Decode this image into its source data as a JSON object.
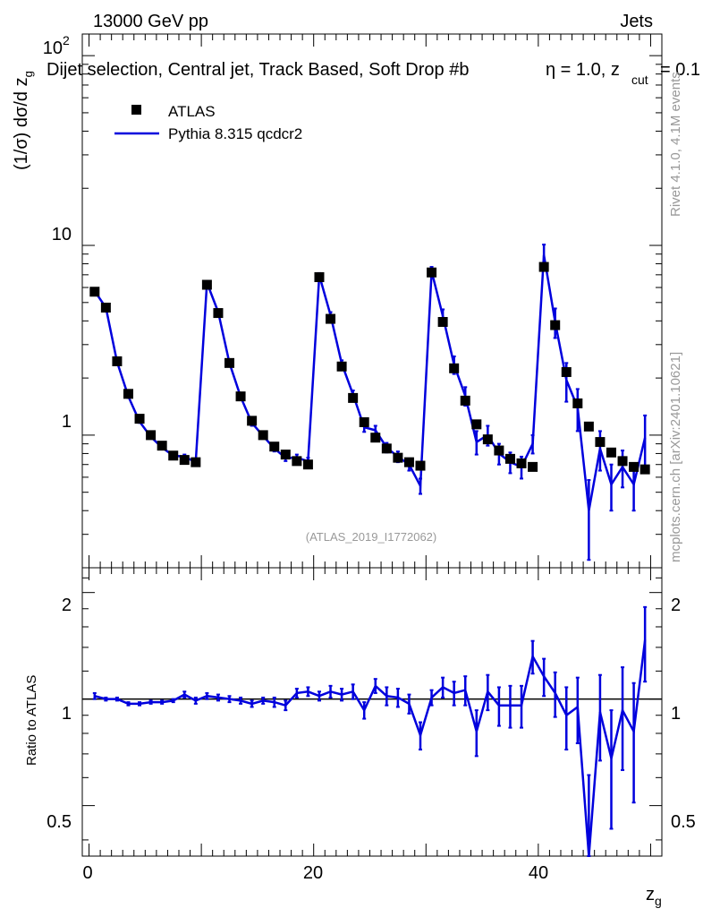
{
  "header": {
    "energy": "13000 GeV pp",
    "process": "Jets",
    "selection": "Dijet selection, Central jet, Track Based, Soft Drop #b",
    "eta_text": "η = 1.0, z",
    "zcut_sub": "cut",
    "zcut_val": "= 0.1",
    "analysis_id": "(ATLAS_2019_I1772062)",
    "side_rivet": "Rivet 4.1.0,  4.1M events",
    "side_mcplots": "mcplots.cern.ch [arXiv:2401.10621]"
  },
  "legend": {
    "data_label": "ATLAS",
    "mc_label": "Pythia 8.315 qcdcr2"
  },
  "colors": {
    "data": "#000000",
    "mc": "#0000dd",
    "ref_line": "#000000",
    "side_text": "#999999"
  },
  "chart_data": [
    {
      "type": "scatter",
      "title": "Dijet selection, Central jet, Track Based, Soft Drop #b η = 1.0, z_cut = 0.1",
      "ylabel_main": "(1/σ) dσ/d z",
      "ylabel_sub": "g",
      "yscale": "log",
      "ylim": [
        0.2,
        130
      ],
      "xlim": [
        -0.6,
        51
      ],
      "ytick_labels": [
        "1",
        "10",
        "10"
      ],
      "ytick_exp": "2",
      "x": [
        0.5,
        1.5,
        2.5,
        3.5,
        4.5,
        5.5,
        6.5,
        7.5,
        8.5,
        9.5,
        10.5,
        11.5,
        12.5,
        13.5,
        14.5,
        15.5,
        16.5,
        17.5,
        18.5,
        19.5,
        20.5,
        21.5,
        22.5,
        23.5,
        24.5,
        25.5,
        26.5,
        27.5,
        28.5,
        29.5,
        30.5,
        31.5,
        32.5,
        33.5,
        34.5,
        35.5,
        36.5,
        37.5,
        38.5,
        39.5,
        40.5,
        41.5,
        42.5,
        43.5,
        44.5,
        45.5,
        46.5,
        47.5,
        48.5,
        49.5
      ],
      "series": [
        {
          "name": "ATLAS",
          "style": "markers",
          "values": [
            5.7,
            4.7,
            2.45,
            1.65,
            1.22,
            1.0,
            0.88,
            0.78,
            0.74,
            0.72,
            6.2,
            4.4,
            2.4,
            1.6,
            1.19,
            1.0,
            0.87,
            0.79,
            0.73,
            0.7,
            6.8,
            4.1,
            2.3,
            1.57,
            1.17,
            0.97,
            0.85,
            0.76,
            0.72,
            0.69,
            7.2,
            3.95,
            2.25,
            1.52,
            1.14,
            0.95,
            0.83,
            0.75,
            0.71,
            0.68,
            7.7,
            3.8,
            2.15,
            1.47,
            1.11,
            0.92,
            0.81,
            0.73,
            0.68,
            0.66
          ]
        },
        {
          "name": "Pythia 8.315 qcdcr2",
          "style": "line",
          "values": [
            5.75,
            4.7,
            2.43,
            1.6,
            1.18,
            0.98,
            0.86,
            0.78,
            0.77,
            0.72,
            6.35,
            4.45,
            2.4,
            1.59,
            1.16,
            0.99,
            0.85,
            0.76,
            0.76,
            0.73,
            6.95,
            4.3,
            2.38,
            1.64,
            1.1,
            1.06,
            0.86,
            0.77,
            0.7,
            0.54,
            7.3,
            4.25,
            2.35,
            1.61,
            0.92,
            1.0,
            0.8,
            0.72,
            0.68,
            0.9,
            8.9,
            3.95,
            1.95,
            1.4,
            0.4,
            0.85,
            0.55,
            0.68,
            0.55,
            0.97
          ],
          "errors": [
            0.08,
            0.07,
            0.04,
            0.03,
            0.02,
            0.02,
            0.02,
            0.02,
            0.02,
            0.02,
            0.15,
            0.12,
            0.07,
            0.05,
            0.04,
            0.03,
            0.03,
            0.03,
            0.03,
            0.03,
            0.2,
            0.15,
            0.1,
            0.08,
            0.06,
            0.06,
            0.05,
            0.05,
            0.05,
            0.05,
            0.4,
            0.35,
            0.25,
            0.18,
            0.13,
            0.12,
            0.1,
            0.09,
            0.09,
            0.1,
            1.2,
            0.7,
            0.45,
            0.35,
            0.18,
            0.2,
            0.15,
            0.15,
            0.15,
            0.3
          ]
        }
      ]
    },
    {
      "type": "line",
      "ylabel": "Ratio to ATLAS",
      "xlabel": "z",
      "xlabel_sub": "g",
      "ylim": [
        0.36,
        2.35
      ],
      "xlim": [
        -0.6,
        51
      ],
      "ytick_labels": [
        "0.5",
        "1",
        "2"
      ],
      "xtick_labels": [
        "0",
        "20",
        "40"
      ],
      "reference": 1.0,
      "x": [
        0.5,
        1.5,
        2.5,
        3.5,
        4.5,
        5.5,
        6.5,
        7.5,
        8.5,
        9.5,
        10.5,
        11.5,
        12.5,
        13.5,
        14.5,
        15.5,
        16.5,
        17.5,
        18.5,
        19.5,
        20.5,
        21.5,
        22.5,
        23.5,
        24.5,
        25.5,
        26.5,
        27.5,
        28.5,
        29.5,
        30.5,
        31.5,
        32.5,
        33.5,
        34.5,
        35.5,
        36.5,
        37.5,
        38.5,
        39.5,
        40.5,
        41.5,
        42.5,
        43.5,
        44.5,
        45.5,
        46.5,
        47.5,
        48.5,
        49.5
      ],
      "series": [
        {
          "name": "Pythia 8.315 qcdcr2",
          "values": [
            1.02,
            1.0,
            1.0,
            0.97,
            0.97,
            0.98,
            0.98,
            0.99,
            1.03,
            0.99,
            1.02,
            1.01,
            1.0,
            0.99,
            0.97,
            0.99,
            0.98,
            0.96,
            1.04,
            1.05,
            1.02,
            1.05,
            1.03,
            1.05,
            0.93,
            1.09,
            1.02,
            1.01,
            0.97,
            0.79,
            1.01,
            1.08,
            1.04,
            1.06,
            0.81,
            1.05,
            0.96,
            0.96,
            0.96,
            1.32,
            1.16,
            1.04,
            0.9,
            0.95,
            0.36,
            0.92,
            0.68,
            0.93,
            0.81,
            1.47
          ],
          "errors": [
            0.02,
            0.01,
            0.01,
            0.01,
            0.01,
            0.01,
            0.01,
            0.01,
            0.02,
            0.02,
            0.02,
            0.02,
            0.02,
            0.02,
            0.02,
            0.02,
            0.03,
            0.03,
            0.03,
            0.03,
            0.03,
            0.04,
            0.04,
            0.05,
            0.05,
            0.05,
            0.06,
            0.06,
            0.06,
            0.07,
            0.05,
            0.07,
            0.08,
            0.1,
            0.12,
            0.12,
            0.12,
            0.13,
            0.13,
            0.14,
            0.14,
            0.15,
            0.18,
            0.2,
            0.25,
            0.25,
            0.25,
            0.3,
            0.3,
            0.35
          ]
        }
      ]
    }
  ]
}
